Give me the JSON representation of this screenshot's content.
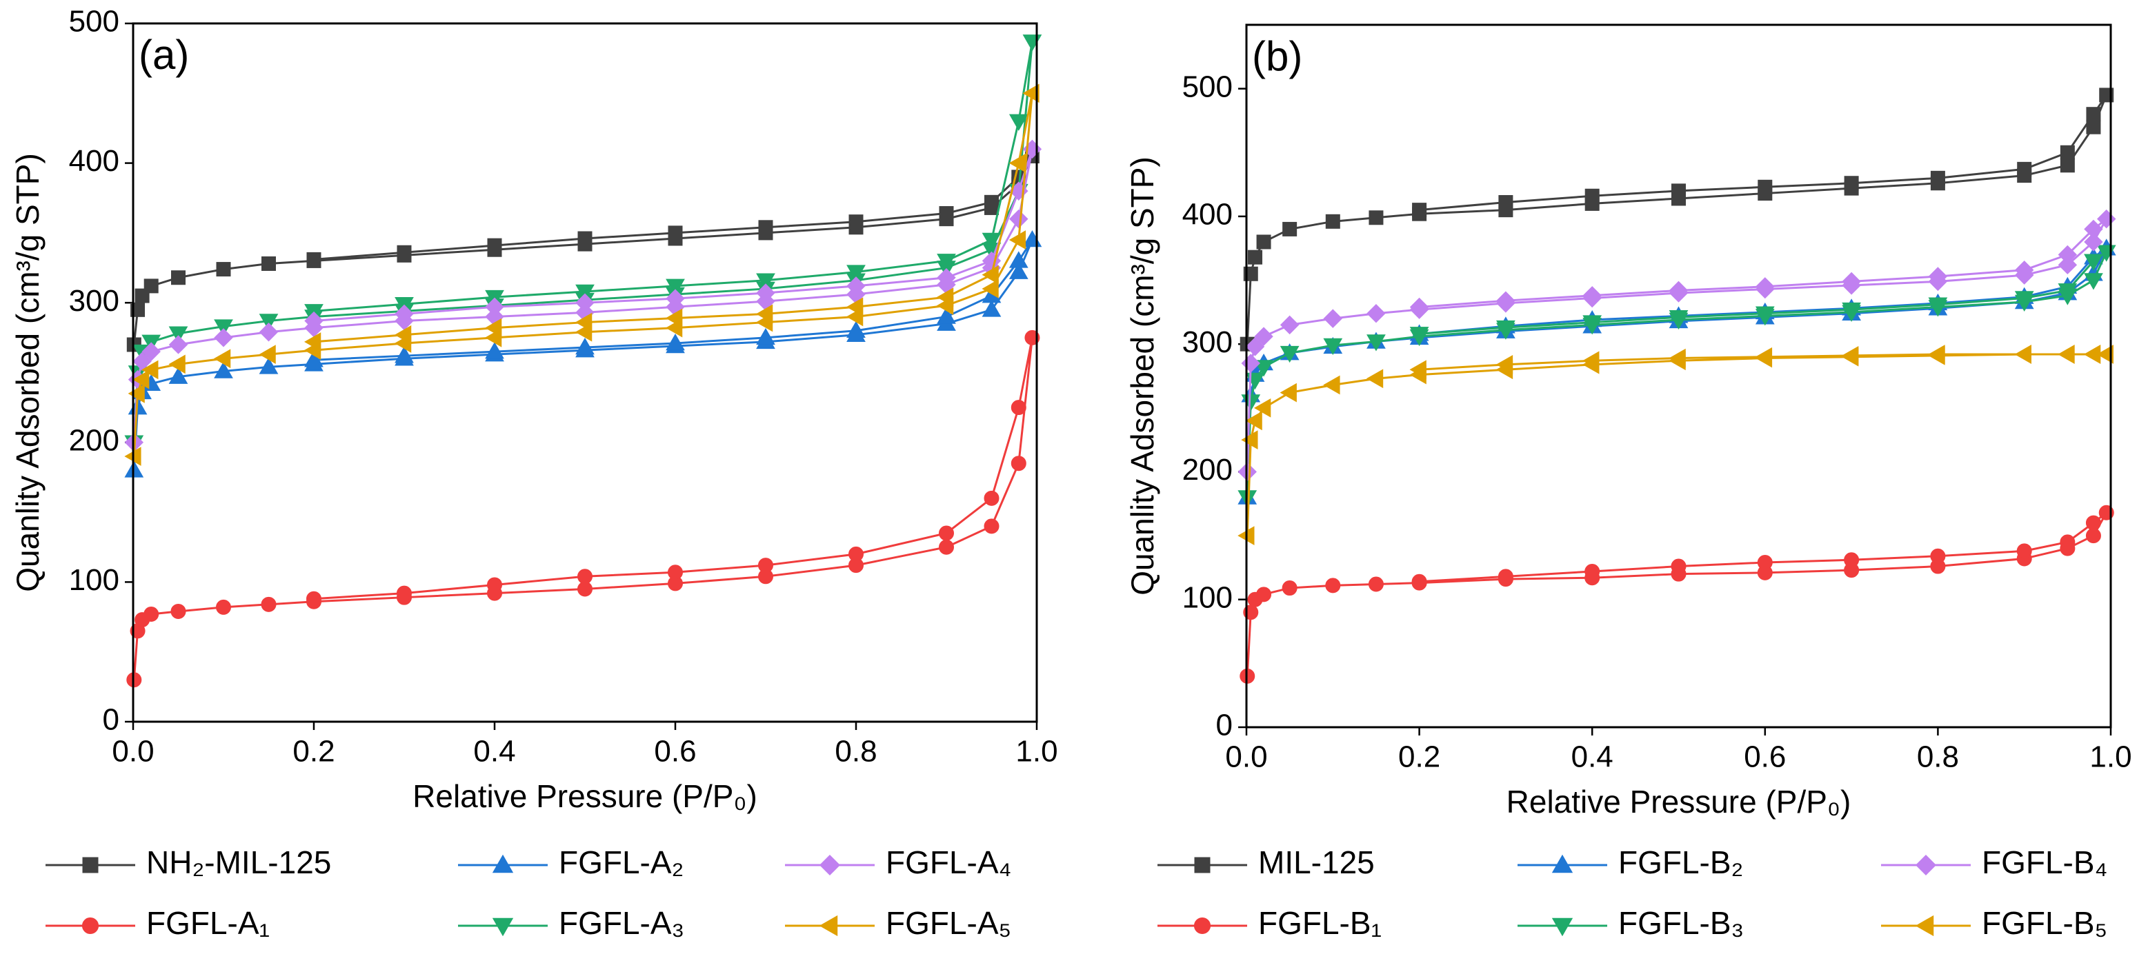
{
  "chart_data": [
    {
      "type": "line",
      "label": "(a)",
      "xlabel": "Relative Pressure (P/P₀)",
      "ylabel": "Quanlity Adsorbed (cm³/g STP)",
      "xlim": [
        0,
        1
      ],
      "ylim": [
        0,
        500
      ],
      "xticks": [
        {
          "value": 0,
          "label": "0.0"
        },
        0.2,
        0.4,
        0.6,
        0.8,
        {
          "value": 1,
          "label": "1.0"
        }
      ],
      "yticks": [
        0,
        100,
        200,
        300,
        400,
        500
      ],
      "x": [
        0.001,
        0.005,
        0.01,
        0.02,
        0.05,
        0.1,
        0.15,
        0.2,
        0.3,
        0.4,
        0.5,
        0.6,
        0.7,
        0.8,
        0.9,
        0.95,
        0.98,
        0.995,
        0.98,
        0.95,
        0.9,
        0.8,
        0.7,
        0.6,
        0.5,
        0.4,
        0.3,
        0.2
      ],
      "series": [
        {
          "name": "NH₂-MIL-125",
          "color": "#404040",
          "marker": "square",
          "values": [
            270,
            295,
            305,
            312,
            318,
            324,
            328,
            330,
            334,
            338,
            342,
            346,
            350,
            354,
            360,
            368,
            385,
            405,
            390,
            372,
            364,
            358,
            354,
            350,
            346,
            341,
            336,
            331
          ]
        },
        {
          "name": "FGFL-A₁",
          "color": "#f03c3c",
          "marker": "circle",
          "values": [
            30,
            65,
            73,
            77,
            79,
            82,
            84,
            86,
            89,
            92,
            95,
            99,
            104,
            112,
            125,
            140,
            185,
            275,
            225,
            160,
            135,
            120,
            112,
            107,
            104,
            98,
            92,
            88
          ]
        },
        {
          "name": "FGFL-A₂",
          "color": "#1f77d4",
          "marker": "tri-up",
          "values": [
            180,
            225,
            236,
            242,
            247,
            251,
            254,
            256,
            260,
            263,
            266,
            269,
            272,
            277,
            285,
            295,
            322,
            345,
            330,
            305,
            290,
            280,
            275,
            271,
            268,
            265,
            262,
            259
          ]
        },
        {
          "name": "FGFL-A₃",
          "color": "#1faa6a",
          "marker": "tri-down",
          "values": [
            200,
            250,
            265,
            272,
            278,
            283,
            287,
            290,
            294,
            298,
            302,
            306,
            310,
            316,
            325,
            338,
            380,
            487,
            430,
            345,
            330,
            322,
            316,
            312,
            308,
            304,
            299,
            294
          ]
        },
        {
          "name": "FGFL-A₄",
          "color": "#c080f0",
          "marker": "diamond",
          "values": [
            200,
            245,
            258,
            265,
            270,
            275,
            279,
            282,
            287,
            290,
            293,
            297,
            301,
            306,
            313,
            325,
            360,
            410,
            380,
            330,
            318,
            312,
            307,
            303,
            300,
            297,
            292,
            287
          ]
        },
        {
          "name": "FGFL-A₅",
          "color": "#e0a000",
          "marker": "tri-left",
          "values": [
            190,
            235,
            245,
            252,
            256,
            260,
            263,
            266,
            271,
            275,
            279,
            282,
            286,
            290,
            298,
            310,
            345,
            450,
            400,
            320,
            304,
            297,
            292,
            289,
            286,
            282,
            277,
            272
          ]
        }
      ]
    },
    {
      "type": "line",
      "label": "(b)",
      "xlabel": "Relative Pressure (P/P₀)",
      "ylabel": "Quanlity Adsorbed (cm³/g STP)",
      "xlim": [
        0,
        1
      ],
      "ylim": [
        0,
        550
      ],
      "xticks": [
        {
          "value": 0,
          "label": "0.0"
        },
        0.2,
        0.4,
        0.6,
        0.8,
        {
          "value": 1,
          "label": "1.0"
        }
      ],
      "yticks": [
        0,
        100,
        200,
        300,
        400,
        500
      ],
      "x": [
        0.001,
        0.005,
        0.01,
        0.02,
        0.05,
        0.1,
        0.15,
        0.2,
        0.3,
        0.4,
        0.5,
        0.6,
        0.7,
        0.8,
        0.9,
        0.95,
        0.98,
        0.995,
        0.98,
        0.95,
        0.9,
        0.8,
        0.7,
        0.6,
        0.5,
        0.4,
        0.3,
        0.2
      ],
      "series": [
        {
          "name": "MIL-125",
          "color": "#404040",
          "marker": "square",
          "values": [
            300,
            355,
            368,
            380,
            390,
            396,
            399,
            402,
            405,
            410,
            414,
            418,
            422,
            426,
            432,
            440,
            470,
            495,
            480,
            450,
            437,
            430,
            426,
            423,
            420,
            416,
            411,
            405
          ]
        },
        {
          "name": "FGFL-B₁",
          "color": "#f03c3c",
          "marker": "circle",
          "values": [
            40,
            90,
            100,
            104,
            109,
            111,
            112,
            113,
            116,
            117,
            120,
            121,
            123,
            126,
            132,
            140,
            150,
            168,
            160,
            145,
            138,
            134,
            131,
            129,
            126,
            122,
            118,
            114
          ]
        },
        {
          "name": "FGFL-B₂",
          "color": "#1f77d4",
          "marker": "tri-up",
          "values": [
            180,
            260,
            276,
            285,
            293,
            298,
            302,
            305,
            310,
            314,
            318,
            321,
            324,
            328,
            333,
            340,
            355,
            375,
            368,
            345,
            337,
            332,
            328,
            325,
            322,
            319,
            314,
            308
          ]
        },
        {
          "name": "FGFL-B₃",
          "color": "#1faa6a",
          "marker": "tri-down",
          "values": [
            180,
            255,
            272,
            282,
            293,
            299,
            302,
            306,
            311,
            315,
            319,
            322,
            325,
            329,
            333,
            338,
            350,
            372,
            365,
            342,
            336,
            331,
            327,
            324,
            321,
            317,
            313,
            308
          ]
        },
        {
          "name": "FGFL-B₄",
          "color": "#c080f0",
          "marker": "diamond",
          "values": [
            200,
            285,
            298,
            306,
            315,
            320,
            324,
            327,
            332,
            336,
            340,
            343,
            346,
            349,
            354,
            362,
            380,
            398,
            390,
            370,
            358,
            353,
            349,
            345,
            342,
            338,
            334,
            329
          ]
        },
        {
          "name": "FGFL-B₅",
          "color": "#e0a000",
          "marker": "tri-left",
          "values": [
            150,
            225,
            240,
            250,
            262,
            268,
            273,
            276,
            280,
            284,
            287,
            289,
            290,
            291,
            292,
            292,
            292,
            292,
            292,
            292,
            292,
            292,
            291,
            290,
            289,
            287,
            284,
            280
          ]
        }
      ]
    }
  ]
}
